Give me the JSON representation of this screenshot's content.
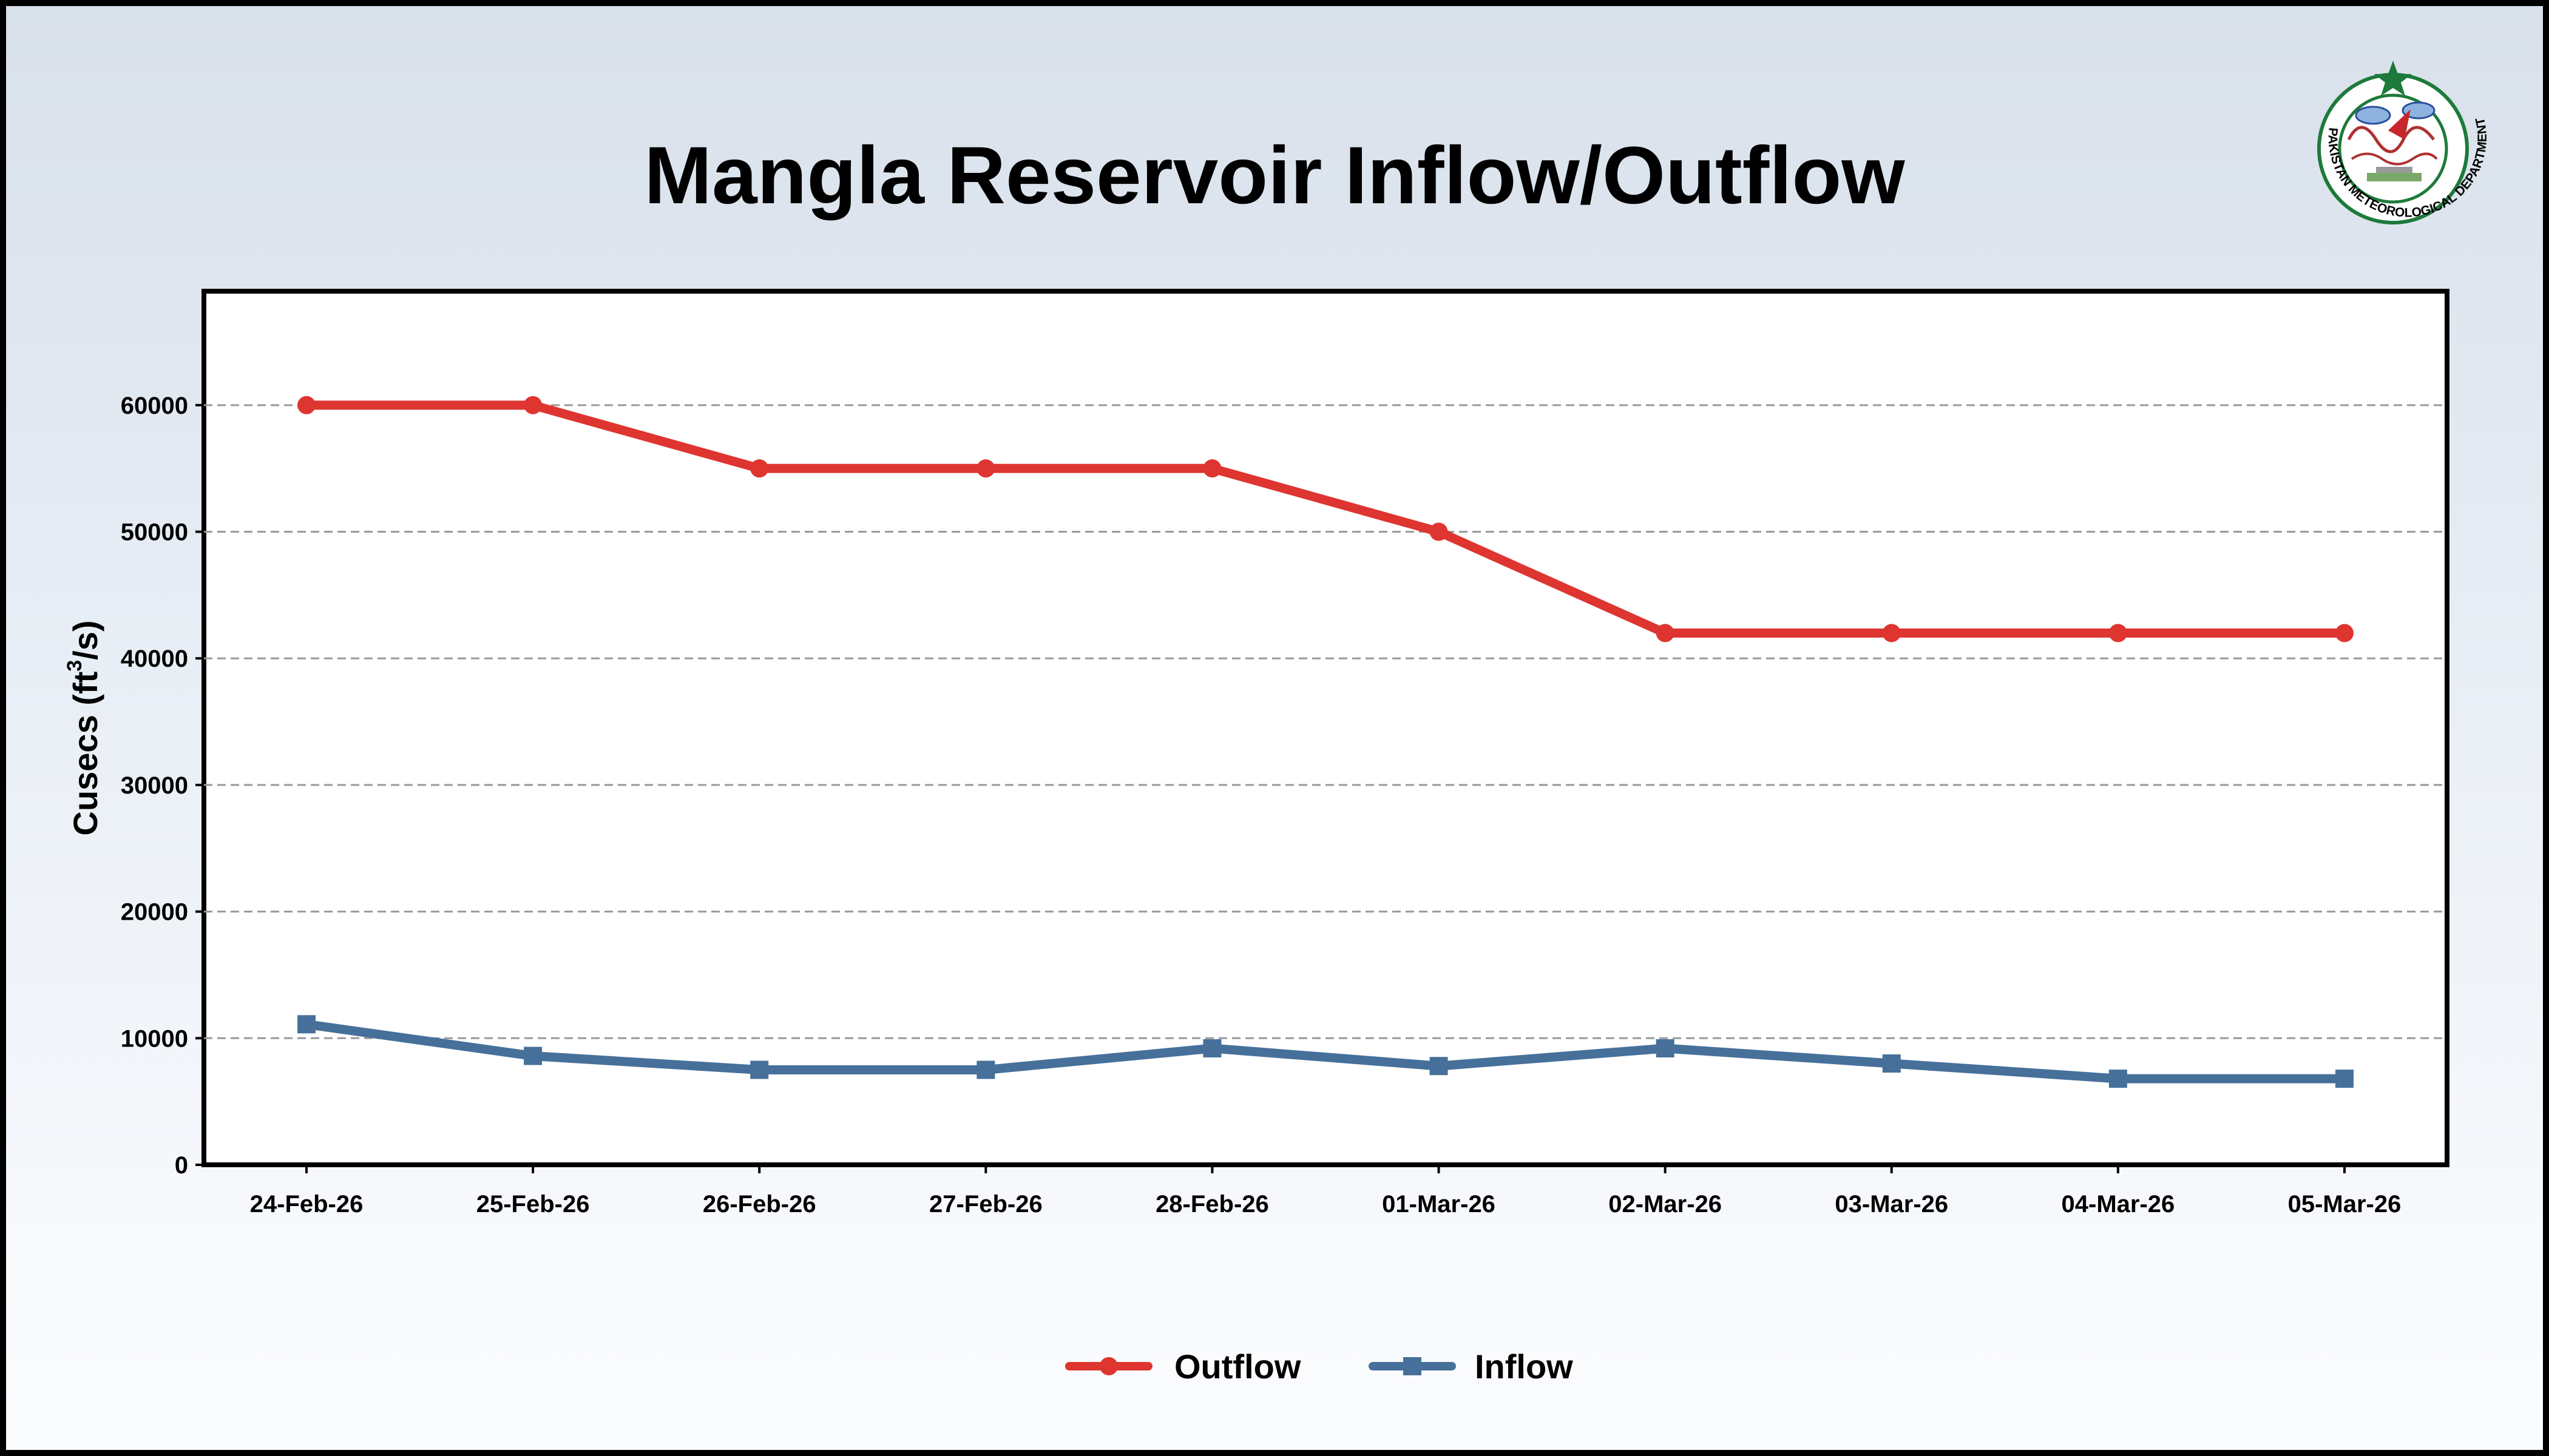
{
  "chart_data": {
    "type": "line",
    "title": "Mangla Reservoir Inflow/Outflow",
    "xlabel": "",
    "ylabel": "Cusecs (ft³/s)",
    "ylabel_main": "Cusecs (ft",
    "ylabel_sup": "3",
    "ylabel_end": "/s)",
    "categories": [
      "24-Feb-26",
      "25-Feb-26",
      "26-Feb-26",
      "27-Feb-26",
      "28-Feb-26",
      "01-Mar-26",
      "02-Mar-26",
      "03-Mar-26",
      "04-Mar-26",
      "05-Mar-26"
    ],
    "ylim": [
      0,
      69000
    ],
    "yticks": [
      0,
      10000,
      20000,
      30000,
      40000,
      50000,
      60000
    ],
    "grid": true,
    "legend_position": "bottom-center",
    "series": [
      {
        "name": "Outflow",
        "color": "#de3530",
        "marker": "circle",
        "values": [
          60000,
          60000,
          55000,
          55000,
          55000,
          50000,
          42000,
          42000,
          42000,
          42000
        ]
      },
      {
        "name": "Inflow",
        "color": "#46709a",
        "marker": "square",
        "values": [
          11100,
          8600,
          7500,
          7500,
          9200,
          7800,
          9200,
          8000,
          6800,
          6800
        ]
      }
    ]
  },
  "logo": {
    "name": "Pakistan Meteorological Department",
    "text": "PAKISTAN METEOROLOGICAL DEPARTMENT",
    "star_color": "#1d7a3a",
    "ring_color": "#1d7a3a"
  }
}
